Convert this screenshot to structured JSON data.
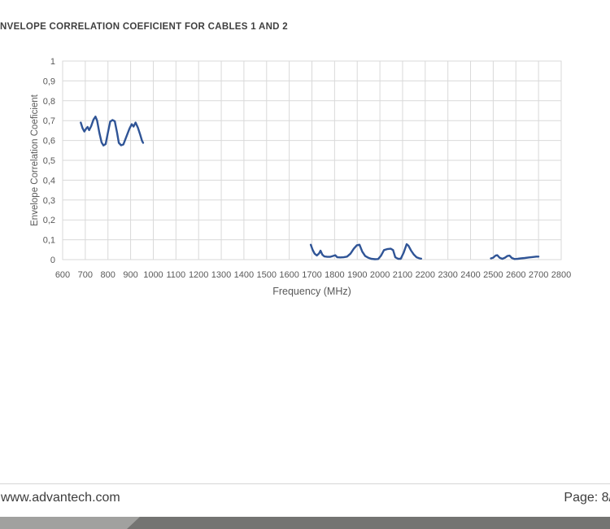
{
  "document": {
    "title": "NVELOPE CORRELATION COEFICIENT FOR CABLES 1 AND 2"
  },
  "footer": {
    "website": "www.advantech.com",
    "page_label": "Page: 8/"
  },
  "colors": {
    "series_line": "#2F5496",
    "gridline": "#D9D9D9",
    "axis_text": "#595959",
    "title_text": "#3F3F3F",
    "footer_text": "#3D3D3D",
    "divider": "#D6D6D6",
    "bar_dark": "#747472",
    "bar_light": "#A1A19F"
  },
  "chart_data": {
    "type": "line",
    "title": "",
    "xlabel": "Frequency (MHz)",
    "ylabel": "Envelope Correlation Coeficient",
    "xlim": [
      600,
      2800
    ],
    "ylim": [
      0,
      1
    ],
    "grid": true,
    "legend": "none",
    "x_ticks": [
      600,
      700,
      800,
      900,
      1000,
      1100,
      1200,
      1300,
      1400,
      1500,
      1600,
      1700,
      1800,
      1900,
      2000,
      2100,
      2200,
      2300,
      2400,
      2500,
      2600,
      2700,
      2800
    ],
    "y_ticks": [
      "0",
      "0,1",
      "0,2",
      "0,3",
      "0,4",
      "0,5",
      "0,6",
      "0,7",
      "0,8",
      "0,9",
      "1"
    ],
    "y_tick_step": 0.1,
    "series": [
      {
        "segments": [
          [
            [
              680,
              0.69
            ],
            [
              688,
              0.662
            ],
            [
              696,
              0.645
            ],
            [
              704,
              0.66
            ],
            [
              710,
              0.668
            ],
            [
              717,
              0.652
            ],
            [
              726,
              0.672
            ],
            [
              736,
              0.705
            ],
            [
              745,
              0.72
            ],
            [
              752,
              0.7
            ],
            [
              762,
              0.64
            ],
            [
              772,
              0.59
            ],
            [
              780,
              0.575
            ],
            [
              790,
              0.582
            ],
            [
              800,
              0.64
            ],
            [
              810,
              0.695
            ],
            [
              820,
              0.703
            ],
            [
              830,
              0.697
            ],
            [
              840,
              0.64
            ],
            [
              848,
              0.588
            ],
            [
              858,
              0.576
            ],
            [
              868,
              0.58
            ],
            [
              880,
              0.615
            ],
            [
              895,
              0.66
            ],
            [
              905,
              0.682
            ],
            [
              913,
              0.67
            ],
            [
              922,
              0.69
            ],
            [
              932,
              0.665
            ],
            [
              942,
              0.63
            ],
            [
              950,
              0.6
            ],
            [
              955,
              0.588
            ]
          ],
          [
            [
              1695,
              0.075
            ],
            [
              1703,
              0.05
            ],
            [
              1712,
              0.03
            ],
            [
              1722,
              0.021
            ],
            [
              1732,
              0.032
            ],
            [
              1738,
              0.045
            ],
            [
              1746,
              0.025
            ],
            [
              1755,
              0.016
            ],
            [
              1768,
              0.014
            ],
            [
              1780,
              0.014
            ],
            [
              1792,
              0.018
            ],
            [
              1803,
              0.022
            ],
            [
              1812,
              0.012
            ],
            [
              1825,
              0.011
            ],
            [
              1840,
              0.012
            ],
            [
              1855,
              0.015
            ],
            [
              1870,
              0.03
            ],
            [
              1885,
              0.055
            ],
            [
              1898,
              0.072
            ],
            [
              1910,
              0.075
            ],
            [
              1922,
              0.04
            ],
            [
              1935,
              0.018
            ],
            [
              1948,
              0.01
            ],
            [
              1962,
              0.004
            ],
            [
              1978,
              0.002
            ],
            [
              1992,
              0.003
            ],
            [
              2005,
              0.02
            ],
            [
              2018,
              0.048
            ],
            [
              2032,
              0.053
            ],
            [
              2048,
              0.055
            ],
            [
              2058,
              0.048
            ],
            [
              2068,
              0.012
            ],
            [
              2080,
              0.004
            ],
            [
              2092,
              0.004
            ],
            [
              2105,
              0.035
            ],
            [
              2118,
              0.078
            ],
            [
              2126,
              0.07
            ],
            [
              2138,
              0.045
            ],
            [
              2150,
              0.025
            ],
            [
              2162,
              0.012
            ],
            [
              2175,
              0.006
            ],
            [
              2182,
              0.005
            ]
          ],
          [
            [
              2490,
              0.006
            ],
            [
              2500,
              0.01
            ],
            [
              2510,
              0.02
            ],
            [
              2518,
              0.022
            ],
            [
              2528,
              0.01
            ],
            [
              2540,
              0.004
            ],
            [
              2552,
              0.01
            ],
            [
              2562,
              0.018
            ],
            [
              2572,
              0.02
            ],
            [
              2582,
              0.008
            ],
            [
              2594,
              0.003
            ],
            [
              2608,
              0.004
            ],
            [
              2622,
              0.006
            ],
            [
              2640,
              0.008
            ],
            [
              2658,
              0.011
            ],
            [
              2675,
              0.013
            ],
            [
              2690,
              0.015
            ],
            [
              2700,
              0.015
            ]
          ]
        ]
      }
    ]
  }
}
